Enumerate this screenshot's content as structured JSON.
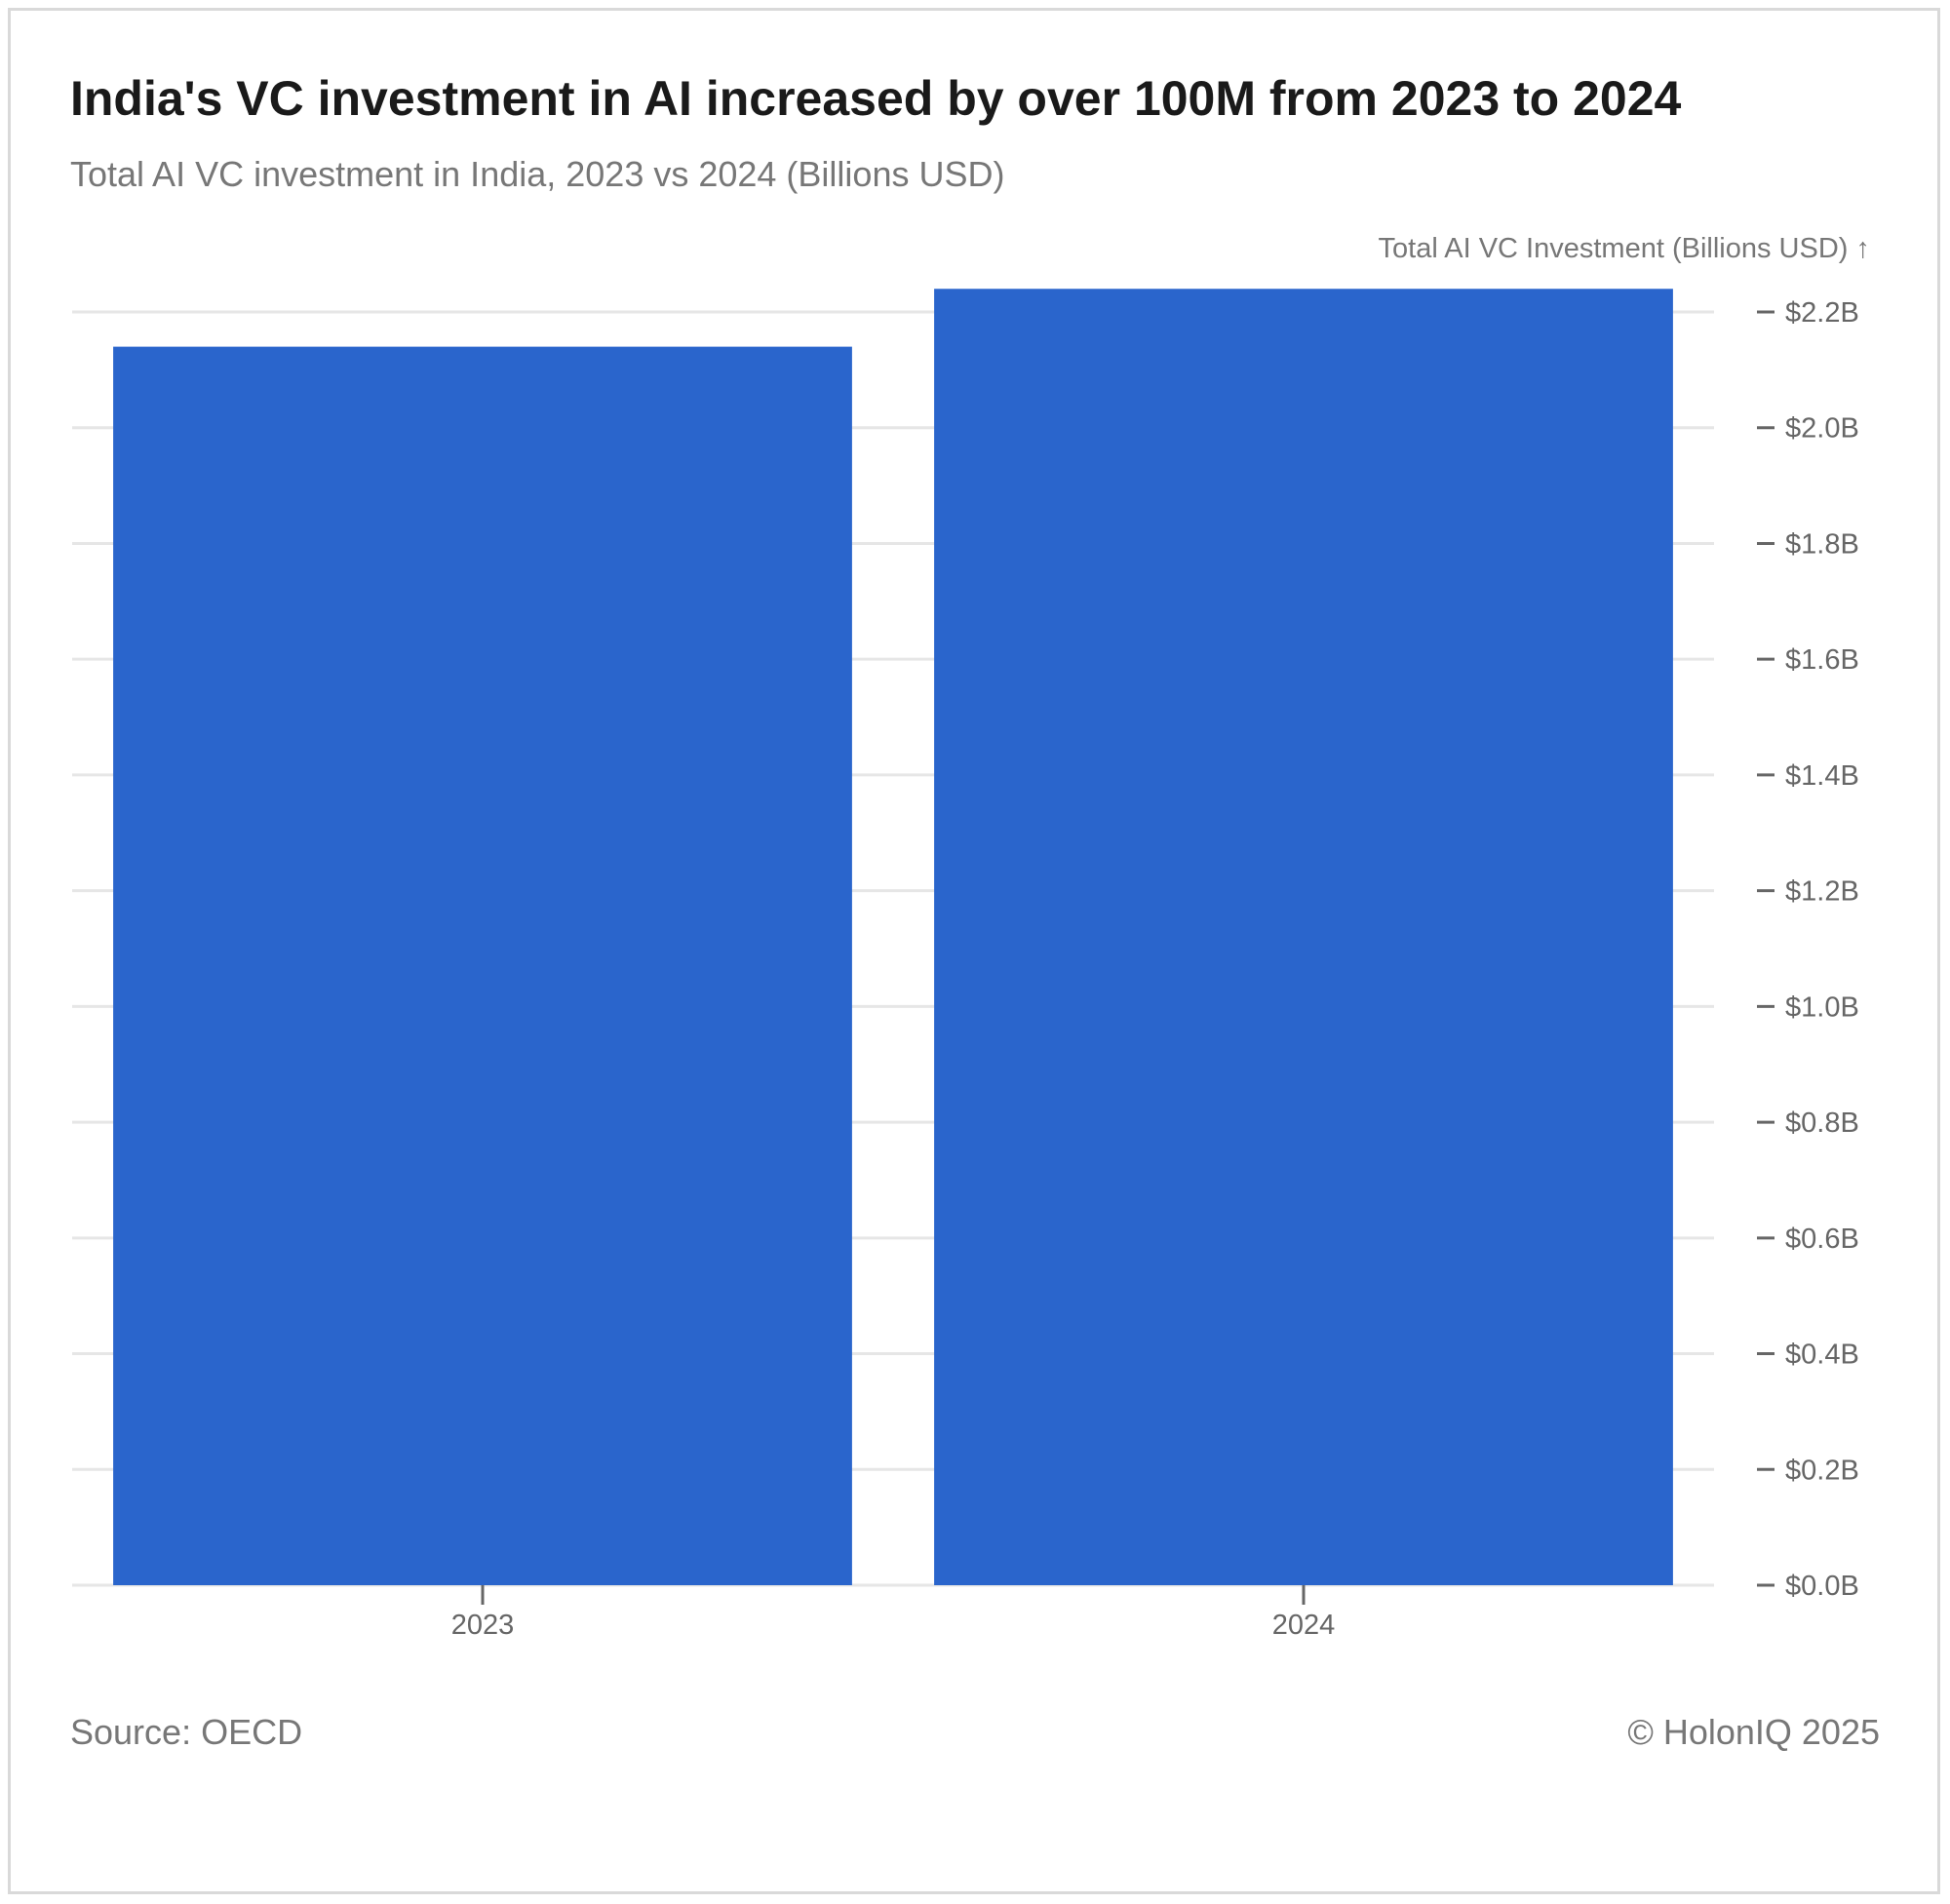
{
  "header": {
    "title": "India's VC investment in AI increased by over 100M from 2023 to 2024",
    "subtitle": "Total AI VC investment in India, 2023 vs 2024 (Billions USD)"
  },
  "footer": {
    "source": "Source: OECD",
    "copyright": "© HolonIQ 2025"
  },
  "colors": {
    "bar": "#2a65cc",
    "grid": "#e6e6e6",
    "tick": "#666666"
  },
  "chart_data": {
    "type": "bar",
    "categories": [
      "2023",
      "2024"
    ],
    "values": [
      2.14,
      2.24
    ],
    "ylabel": "Total AI VC Investment (Billions USD) ↑",
    "ylim": [
      0,
      2.2
    ],
    "yticks": [
      0.0,
      0.2,
      0.4,
      0.6,
      0.8,
      1.0,
      1.2,
      1.4,
      1.6,
      1.8,
      2.0,
      2.2
    ],
    "ytick_labels": [
      "$0.0B",
      "$0.2B",
      "$0.4B",
      "$0.6B",
      "$0.8B",
      "$1.0B",
      "$1.2B",
      "$1.4B",
      "$1.6B",
      "$1.8B",
      "$2.0B",
      "$2.2B"
    ],
    "y_axis_side": "right",
    "grid": true
  }
}
